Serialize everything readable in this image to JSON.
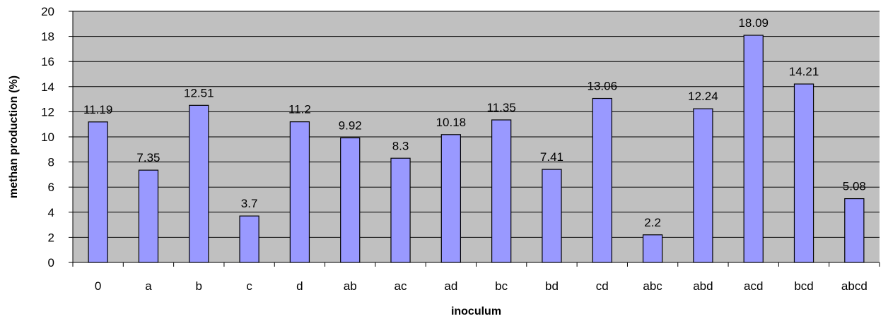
{
  "chart_data": {
    "type": "bar",
    "title": "",
    "xlabel": "inoculum",
    "ylabel": "methan production (%)",
    "ylim": [
      0,
      20
    ],
    "yticks": [
      0,
      2,
      4,
      6,
      8,
      10,
      12,
      14,
      16,
      18,
      20
    ],
    "grid": true,
    "categories": [
      "0",
      "a",
      "b",
      "c",
      "d",
      "ab",
      "ac",
      "ad",
      "bc",
      "bd",
      "cd",
      "abc",
      "abd",
      "acd",
      "bcd",
      "abcd"
    ],
    "values": [
      11.19,
      7.35,
      12.51,
      3.7,
      11.2,
      9.92,
      8.3,
      10.18,
      11.35,
      7.41,
      13.06,
      2.2,
      12.24,
      18.09,
      14.21,
      5.08
    ],
    "data_labels": [
      "11.19",
      "7.35",
      "12.51",
      "3.7",
      "11.2",
      "9.92",
      "8.3",
      "10.18",
      "11.35",
      "7.41",
      "13.06",
      "2.2",
      "12.24",
      "18.09",
      "14.21",
      "5.08"
    ],
    "colors": {
      "bar_fill": "#9999ff",
      "bar_stroke": "#000000",
      "plot_background": "#c0c0c0",
      "gridline": "#000000"
    }
  }
}
